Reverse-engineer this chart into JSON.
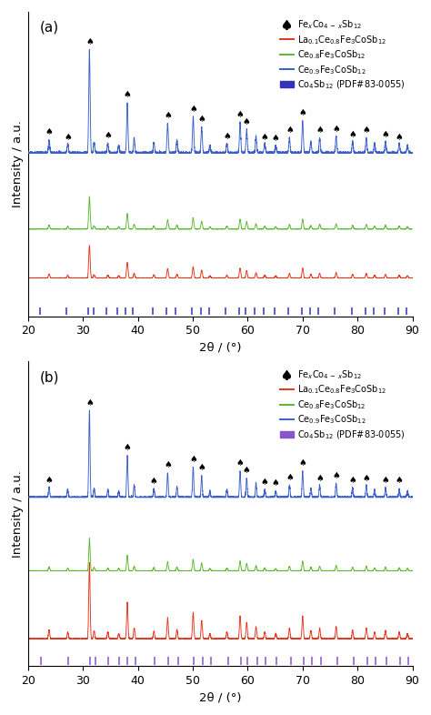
{
  "xlim": [
    20,
    90
  ],
  "xlabel": "2θ / (°)",
  "ylabel": "Intensity / a.u.",
  "color_red": "#e8341c",
  "color_green": "#5ab82e",
  "color_blue": "#3a5fcd",
  "color_pdf_a": "#3333bb",
  "color_pdf_b": "#8855cc",
  "panel_a_label": "(a)",
  "panel_b_label": "(b)",
  "legend_label1": "Fe$_x$Co$_{4 - x}$Sb$_{12}$",
  "legend_label2": "La$_{0.1}$Ce$_{0.8}$Fe$_3$CoSb$_{12}$",
  "legend_label3": "Ce$_{0.8}$Fe$_3$CoSb$_{12}$",
  "legend_label4": "Ce$_{0.9}$Fe$_3$CoSb$_{12}$",
  "legend_label5_a": "Co$_4$Sb$_{12}$ (PDF#83-0055)",
  "legend_label5_b": "Co$_4$Sb$_{12}$ (PDF#83-0055)",
  "xrd_peaks": [
    23.8,
    27.2,
    31.15,
    32.0,
    34.5,
    36.5,
    38.05,
    39.3,
    42.9,
    45.4,
    47.1,
    50.05,
    51.6,
    53.1,
    56.2,
    58.6,
    59.8,
    61.5,
    63.1,
    65.1,
    67.6,
    70.0,
    71.5,
    73.1,
    76.1,
    79.1,
    81.6,
    83.1,
    85.1,
    87.6,
    89.1
  ],
  "xrd_peak_heights": [
    0.12,
    0.09,
    1.0,
    0.1,
    0.09,
    0.07,
    0.48,
    0.14,
    0.1,
    0.28,
    0.12,
    0.35,
    0.24,
    0.07,
    0.09,
    0.3,
    0.22,
    0.16,
    0.09,
    0.07,
    0.14,
    0.3,
    0.11,
    0.14,
    0.16,
    0.11,
    0.14,
    0.09,
    0.11,
    0.09,
    0.07
  ],
  "arrow_peaks_a": [
    23.8,
    27.2,
    31.15,
    34.5,
    38.05,
    45.4,
    50.05,
    51.6,
    56.2,
    58.6,
    59.8,
    63.1,
    65.1,
    67.6,
    70.0,
    73.1,
    76.1,
    79.1,
    81.6,
    85.1,
    87.6
  ],
  "arrow_peaks_b": [
    23.8,
    31.15,
    38.05,
    42.9,
    45.4,
    50.05,
    51.6,
    58.6,
    59.8,
    63.1,
    65.1,
    67.6,
    70.0,
    73.1,
    76.1,
    79.1,
    81.6,
    85.1,
    87.6
  ],
  "pdf_ticks_a": [
    22.1,
    26.9,
    31.0,
    31.9,
    34.2,
    36.3,
    37.7,
    39.1,
    42.7,
    45.1,
    46.9,
    49.8,
    51.4,
    52.9,
    56.0,
    58.4,
    59.6,
    61.3,
    62.9,
    64.9,
    67.4,
    69.8,
    71.3,
    72.9,
    75.9,
    78.9,
    81.4,
    82.9,
    84.9,
    87.4,
    88.9
  ],
  "pdf_ticks_b": [
    22.3,
    27.3,
    31.2,
    32.2,
    34.6,
    36.6,
    38.1,
    39.5,
    43.1,
    45.5,
    47.3,
    50.2,
    51.8,
    53.3,
    56.4,
    58.8,
    60.0,
    61.7,
    63.3,
    65.3,
    67.8,
    70.2,
    71.7,
    73.3,
    76.3,
    79.3,
    81.8,
    83.3,
    85.3,
    87.8,
    89.3
  ]
}
